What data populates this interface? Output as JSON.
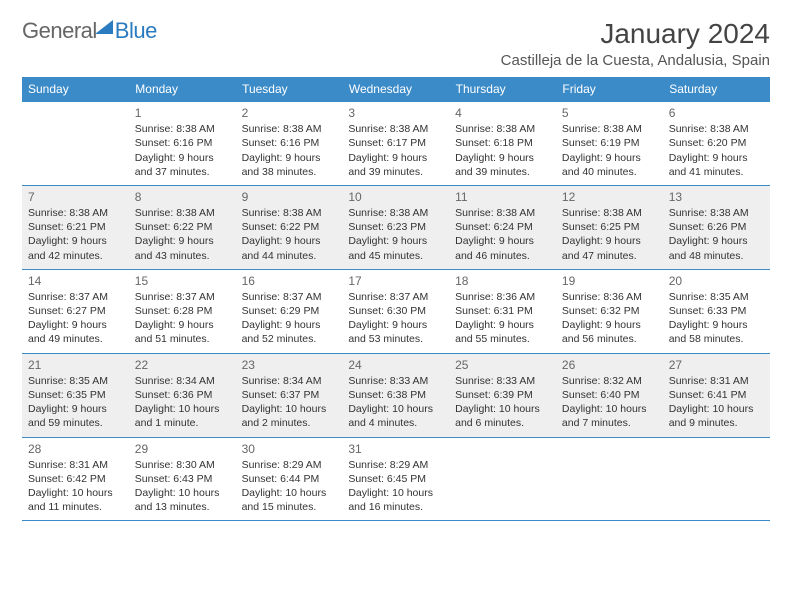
{
  "logo": {
    "g": "General",
    "b": "Blue"
  },
  "header": {
    "month": "January 2024",
    "location": "Castilleja de la Cuesta, Andalusia, Spain"
  },
  "days": [
    "Sunday",
    "Monday",
    "Tuesday",
    "Wednesday",
    "Thursday",
    "Friday",
    "Saturday"
  ],
  "weeks": [
    [
      null,
      {
        "n": "1",
        "sr": "Sunrise: 8:38 AM",
        "ss": "Sunset: 6:16 PM",
        "dl": "Daylight: 9 hours and 37 minutes."
      },
      {
        "n": "2",
        "sr": "Sunrise: 8:38 AM",
        "ss": "Sunset: 6:16 PM",
        "dl": "Daylight: 9 hours and 38 minutes."
      },
      {
        "n": "3",
        "sr": "Sunrise: 8:38 AM",
        "ss": "Sunset: 6:17 PM",
        "dl": "Daylight: 9 hours and 39 minutes."
      },
      {
        "n": "4",
        "sr": "Sunrise: 8:38 AM",
        "ss": "Sunset: 6:18 PM",
        "dl": "Daylight: 9 hours and 39 minutes."
      },
      {
        "n": "5",
        "sr": "Sunrise: 8:38 AM",
        "ss": "Sunset: 6:19 PM",
        "dl": "Daylight: 9 hours and 40 minutes."
      },
      {
        "n": "6",
        "sr": "Sunrise: 8:38 AM",
        "ss": "Sunset: 6:20 PM",
        "dl": "Daylight: 9 hours and 41 minutes."
      }
    ],
    [
      {
        "n": "7",
        "sr": "Sunrise: 8:38 AM",
        "ss": "Sunset: 6:21 PM",
        "dl": "Daylight: 9 hours and 42 minutes."
      },
      {
        "n": "8",
        "sr": "Sunrise: 8:38 AM",
        "ss": "Sunset: 6:22 PM",
        "dl": "Daylight: 9 hours and 43 minutes."
      },
      {
        "n": "9",
        "sr": "Sunrise: 8:38 AM",
        "ss": "Sunset: 6:22 PM",
        "dl": "Daylight: 9 hours and 44 minutes."
      },
      {
        "n": "10",
        "sr": "Sunrise: 8:38 AM",
        "ss": "Sunset: 6:23 PM",
        "dl": "Daylight: 9 hours and 45 minutes."
      },
      {
        "n": "11",
        "sr": "Sunrise: 8:38 AM",
        "ss": "Sunset: 6:24 PM",
        "dl": "Daylight: 9 hours and 46 minutes."
      },
      {
        "n": "12",
        "sr": "Sunrise: 8:38 AM",
        "ss": "Sunset: 6:25 PM",
        "dl": "Daylight: 9 hours and 47 minutes."
      },
      {
        "n": "13",
        "sr": "Sunrise: 8:38 AM",
        "ss": "Sunset: 6:26 PM",
        "dl": "Daylight: 9 hours and 48 minutes."
      }
    ],
    [
      {
        "n": "14",
        "sr": "Sunrise: 8:37 AM",
        "ss": "Sunset: 6:27 PM",
        "dl": "Daylight: 9 hours and 49 minutes."
      },
      {
        "n": "15",
        "sr": "Sunrise: 8:37 AM",
        "ss": "Sunset: 6:28 PM",
        "dl": "Daylight: 9 hours and 51 minutes."
      },
      {
        "n": "16",
        "sr": "Sunrise: 8:37 AM",
        "ss": "Sunset: 6:29 PM",
        "dl": "Daylight: 9 hours and 52 minutes."
      },
      {
        "n": "17",
        "sr": "Sunrise: 8:37 AM",
        "ss": "Sunset: 6:30 PM",
        "dl": "Daylight: 9 hours and 53 minutes."
      },
      {
        "n": "18",
        "sr": "Sunrise: 8:36 AM",
        "ss": "Sunset: 6:31 PM",
        "dl": "Daylight: 9 hours and 55 minutes."
      },
      {
        "n": "19",
        "sr": "Sunrise: 8:36 AM",
        "ss": "Sunset: 6:32 PM",
        "dl": "Daylight: 9 hours and 56 minutes."
      },
      {
        "n": "20",
        "sr": "Sunrise: 8:35 AM",
        "ss": "Sunset: 6:33 PM",
        "dl": "Daylight: 9 hours and 58 minutes."
      }
    ],
    [
      {
        "n": "21",
        "sr": "Sunrise: 8:35 AM",
        "ss": "Sunset: 6:35 PM",
        "dl": "Daylight: 9 hours and 59 minutes."
      },
      {
        "n": "22",
        "sr": "Sunrise: 8:34 AM",
        "ss": "Sunset: 6:36 PM",
        "dl": "Daylight: 10 hours and 1 minute."
      },
      {
        "n": "23",
        "sr": "Sunrise: 8:34 AM",
        "ss": "Sunset: 6:37 PM",
        "dl": "Daylight: 10 hours and 2 minutes."
      },
      {
        "n": "24",
        "sr": "Sunrise: 8:33 AM",
        "ss": "Sunset: 6:38 PM",
        "dl": "Daylight: 10 hours and 4 minutes."
      },
      {
        "n": "25",
        "sr": "Sunrise: 8:33 AM",
        "ss": "Sunset: 6:39 PM",
        "dl": "Daylight: 10 hours and 6 minutes."
      },
      {
        "n": "26",
        "sr": "Sunrise: 8:32 AM",
        "ss": "Sunset: 6:40 PM",
        "dl": "Daylight: 10 hours and 7 minutes."
      },
      {
        "n": "27",
        "sr": "Sunrise: 8:31 AM",
        "ss": "Sunset: 6:41 PM",
        "dl": "Daylight: 10 hours and 9 minutes."
      }
    ],
    [
      {
        "n": "28",
        "sr": "Sunrise: 8:31 AM",
        "ss": "Sunset: 6:42 PM",
        "dl": "Daylight: 10 hours and 11 minutes."
      },
      {
        "n": "29",
        "sr": "Sunrise: 8:30 AM",
        "ss": "Sunset: 6:43 PM",
        "dl": "Daylight: 10 hours and 13 minutes."
      },
      {
        "n": "30",
        "sr": "Sunrise: 8:29 AM",
        "ss": "Sunset: 6:44 PM",
        "dl": "Daylight: 10 hours and 15 minutes."
      },
      {
        "n": "31",
        "sr": "Sunrise: 8:29 AM",
        "ss": "Sunset: 6:45 PM",
        "dl": "Daylight: 10 hours and 16 minutes."
      },
      null,
      null,
      null
    ]
  ],
  "style": {
    "header_bg": "#3b8bc9",
    "header_fg": "#ffffff",
    "border_color": "#3b8bc9",
    "alt_row_bg": "#efefef",
    "daynum_color": "#666666",
    "text_color": "#333333",
    "font_family": "Arial",
    "cell_fontsize": 10.5,
    "header_fontsize": 12,
    "month_fontsize": 28,
    "loc_fontsize": 15
  }
}
